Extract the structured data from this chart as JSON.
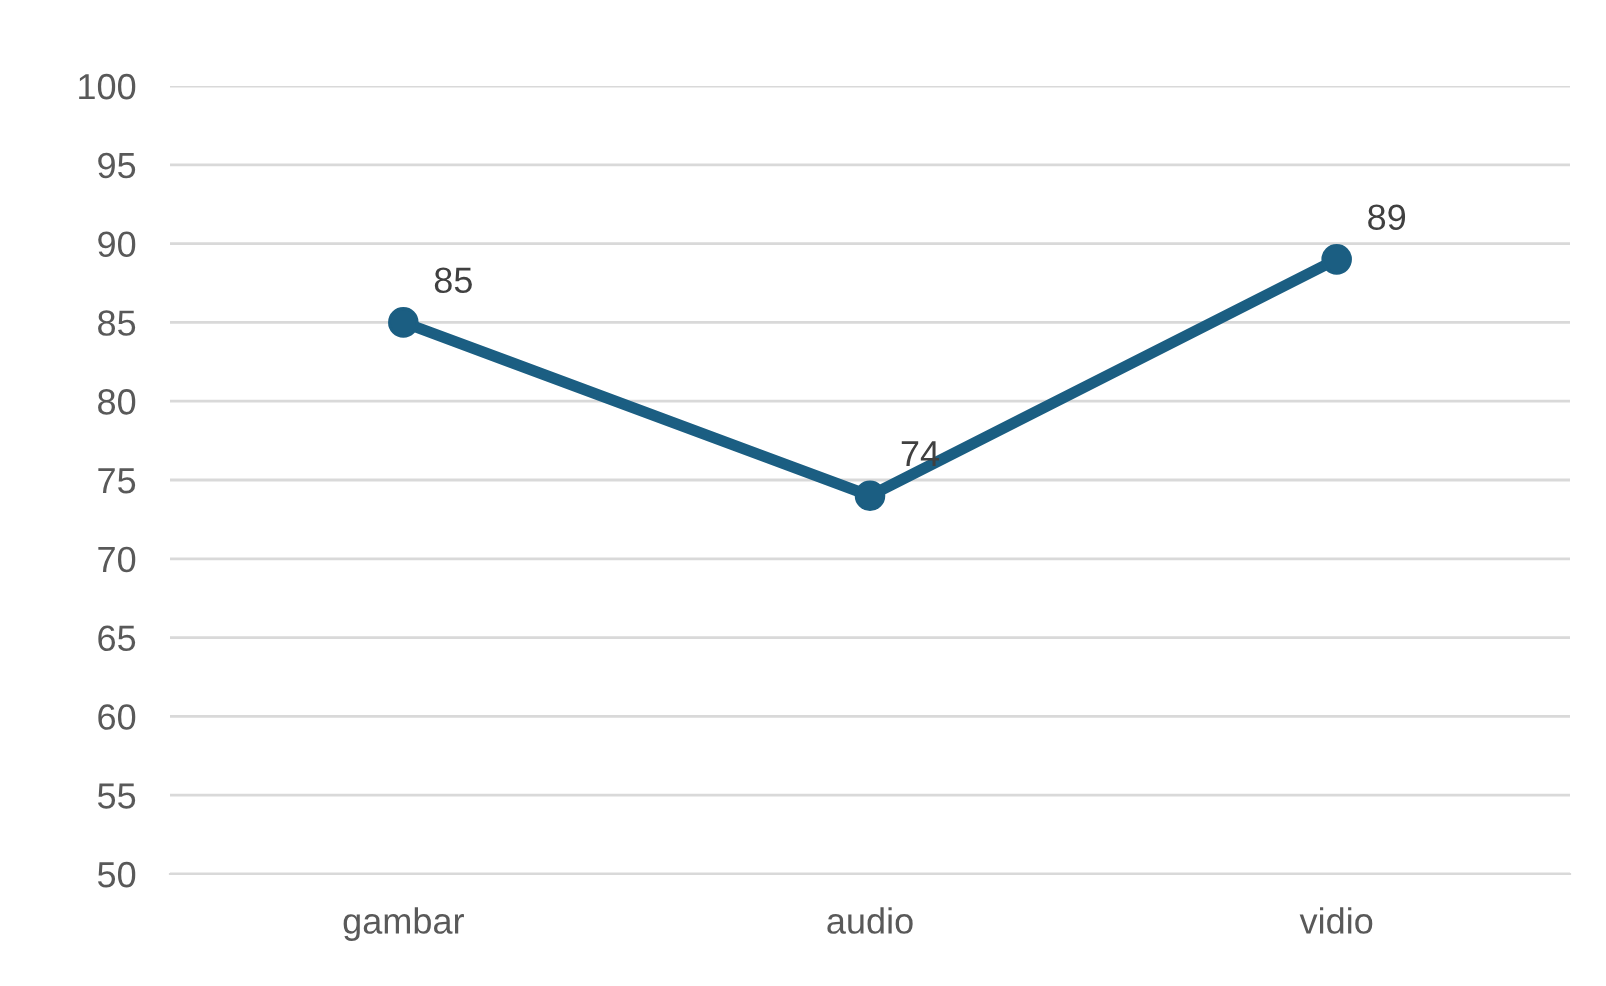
{
  "chart_data": {
    "type": "line",
    "categories": [
      "gambar",
      "audio",
      "vidio"
    ],
    "series": [
      {
        "color": "#1b5e82",
        "values": [
          85,
          74,
          89
        ]
      }
    ],
    "ylim": [
      50,
      100
    ],
    "yticks": [
      50,
      55,
      60,
      65,
      70,
      75,
      80,
      85,
      90,
      95,
      100
    ],
    "grid": "y",
    "marker": "circle",
    "line_style": "solid",
    "data_labels": true,
    "legend": false
  }
}
